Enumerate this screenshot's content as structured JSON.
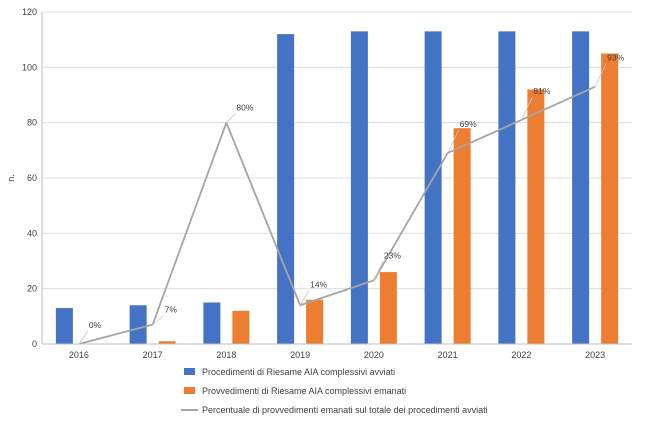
{
  "chart_data": {
    "type": "bar",
    "categories": [
      "2016",
      "2017",
      "2018",
      "2019",
      "2020",
      "2021",
      "2022",
      "2023"
    ],
    "ylabel": "n.",
    "ylim": [
      0,
      120
    ],
    "yticks": [
      0,
      20,
      40,
      60,
      80,
      100,
      120
    ],
    "grid": true,
    "legend_position": "bottom-left",
    "series": [
      {
        "name": "Procedimenti di Riesame AIA complessivi avviati",
        "type": "bar",
        "color": "#4472C4",
        "values": [
          13,
          14,
          15,
          112,
          113,
          113,
          113,
          113
        ]
      },
      {
        "name": "Provvedimenti di Riesame AIA complessivi emanati",
        "type": "bar",
        "color": "#ED7D31",
        "values": [
          0,
          1,
          12,
          16,
          26,
          78,
          92,
          105
        ]
      },
      {
        "name": "Percentuale di provvedimenti emanati sul totale dei procedimenti avviati",
        "type": "line",
        "color": "#A5A5A5",
        "values": [
          0,
          7,
          80,
          14,
          23,
          69,
          81,
          93
        ],
        "labels": [
          "0%",
          "7%",
          "80%",
          "14%",
          "23%",
          "69%",
          "81%",
          "93%"
        ]
      }
    ]
  }
}
